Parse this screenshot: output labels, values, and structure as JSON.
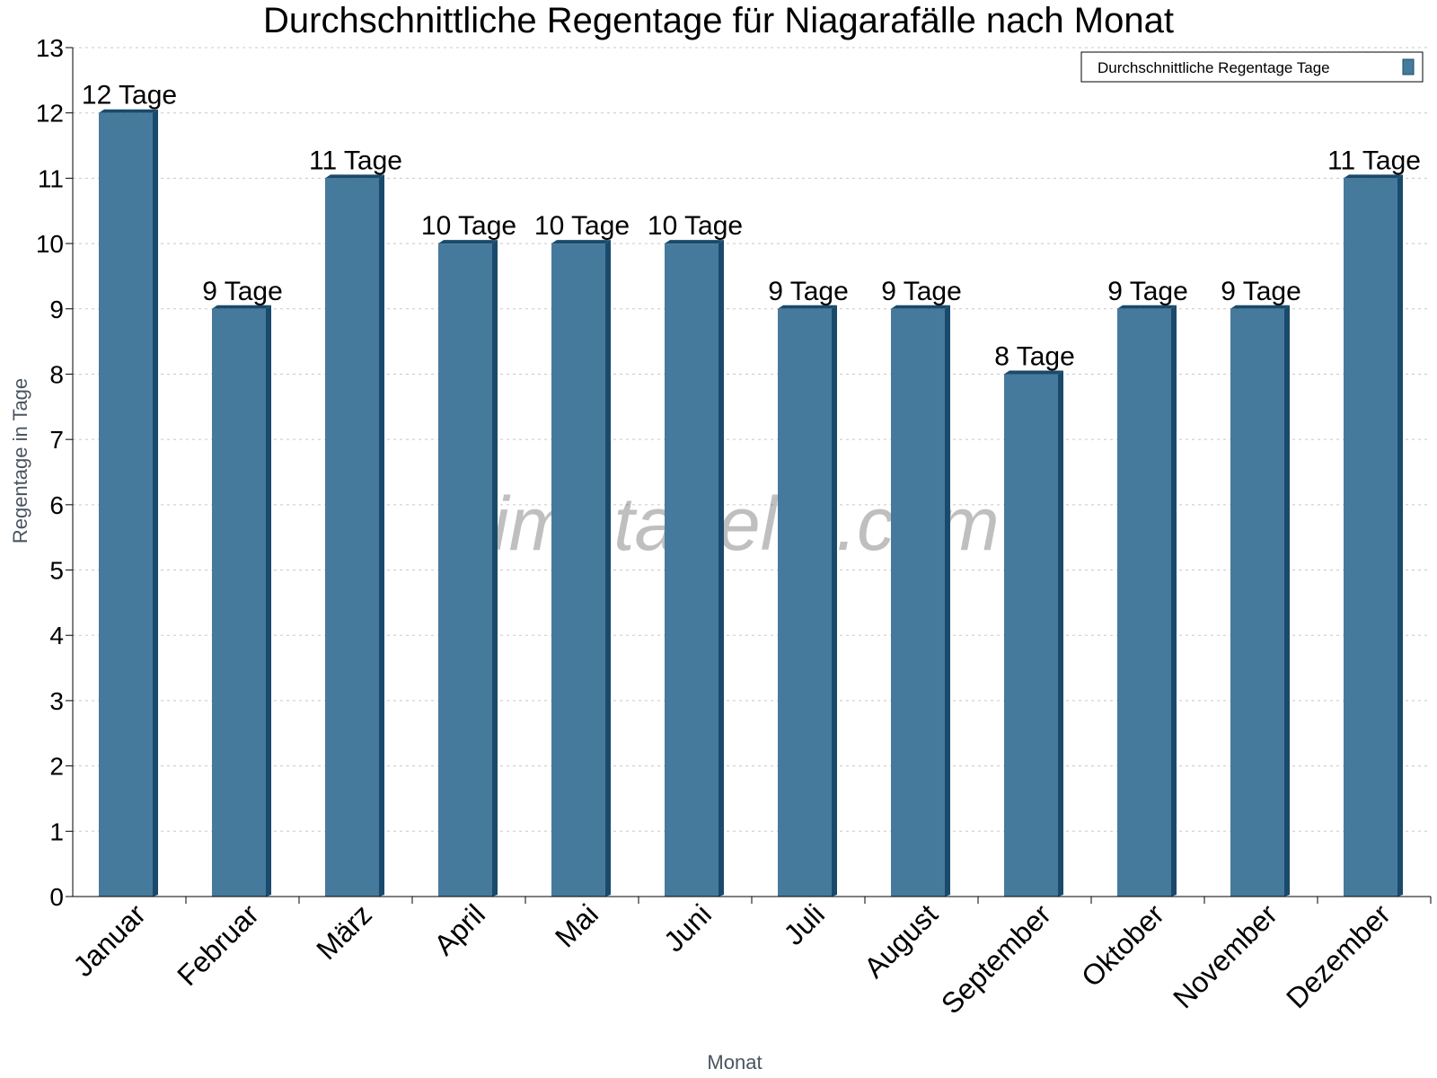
{
  "chart_data": {
    "type": "bar",
    "title": "Durchschnittliche Regentage für Niagarafälle nach Monat",
    "xlabel": "Monat",
    "ylabel": "Regentage in Tage",
    "categories": [
      "Januar",
      "Februar",
      "März",
      "April",
      "Mai",
      "Juni",
      "Juli",
      "August",
      "September",
      "Oktober",
      "November",
      "Dezember"
    ],
    "series": [
      {
        "name": "Durchschnittliche Regentage Tage",
        "values": [
          12,
          9,
          11,
          10,
          10,
          10,
          9,
          9,
          8,
          9,
          9,
          11
        ],
        "color": "#467a9c",
        "shade_color": "#1a4a6b"
      }
    ],
    "data_labels": [
      "12 Tage",
      "9 Tage",
      "11 Tage",
      "10 Tage",
      "10 Tage",
      "10 Tage",
      "9 Tage",
      "9 Tage",
      "8 Tage",
      "9 Tage",
      "9 Tage",
      "11 Tage"
    ],
    "ylim": [
      0,
      13
    ],
    "yticks": [
      0,
      1,
      2,
      3,
      4,
      5,
      6,
      7,
      8,
      9,
      10,
      11,
      12,
      13
    ],
    "grid": "horizontal dotted",
    "legend_position": "top-right",
    "watermark": "klimatabelle.com"
  }
}
